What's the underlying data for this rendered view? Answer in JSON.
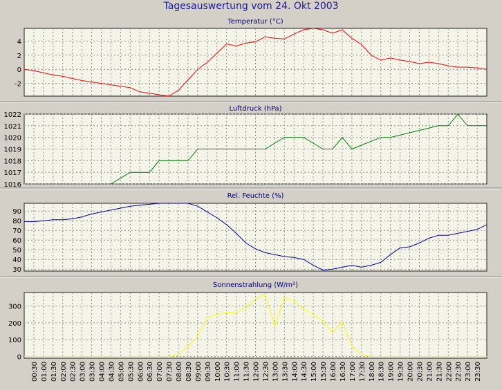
{
  "title": "Tagesauswertung vom 24. Okt 2003",
  "time_labels": [
    "00:30",
    "01:00",
    "01:30",
    "02:00",
    "02:30",
    "03:00",
    "03:30",
    "04:00",
    "04:30",
    "05:00",
    "05:30",
    "06:00",
    "06:30",
    "07:00",
    "07:30",
    "08:00",
    "08:30",
    "09:00",
    "09:30",
    "10:00",
    "10:30",
    "11:00",
    "11:30",
    "12:00",
    "12:30",
    "13:00",
    "13:30",
    "14:00",
    "14:30",
    "15:00",
    "15:30",
    "16:00",
    "16:30",
    "17:00",
    "17:30",
    "18:00",
    "18:30",
    "19:00",
    "19:30",
    "20:00",
    "20:30",
    "21:00",
    "21:30",
    "22:00",
    "22:30",
    "23:00",
    "23:30"
  ],
  "chart_data": [
    {
      "type": "line",
      "title": "Temperatur (°C)",
      "color": "#ff0000",
      "ylim": [
        -3.8,
        5.8
      ],
      "yticks": [
        -2,
        0,
        2,
        4
      ],
      "grid": true,
      "x": [
        "00:00",
        "00:30",
        "01:00",
        "01:30",
        "02:00",
        "02:30",
        "03:00",
        "03:30",
        "04:00",
        "04:30",
        "05:00",
        "05:30",
        "06:00",
        "06:30",
        "07:00",
        "07:30",
        "08:00",
        "08:30",
        "09:00",
        "09:30",
        "10:00",
        "10:30",
        "11:00",
        "11:30",
        "12:00",
        "12:30",
        "13:00",
        "13:30",
        "14:00",
        "14:30",
        "15:00",
        "15:30",
        "16:00",
        "16:30",
        "17:00",
        "17:30",
        "18:00",
        "18:30",
        "19:00",
        "19:30",
        "20:00",
        "20:30",
        "21:00",
        "21:30",
        "22:00",
        "22:30",
        "23:00",
        "23:30",
        "24:00"
      ],
      "values": [
        0.0,
        -0.2,
        -0.5,
        -0.8,
        -1.0,
        -1.3,
        -1.6,
        -1.8,
        -2.0,
        -2.2,
        -2.4,
        -2.6,
        -3.2,
        -3.4,
        -3.6,
        -3.8,
        -3.0,
        -1.5,
        0.0,
        1.0,
        2.3,
        3.6,
        3.3,
        3.7,
        3.9,
        4.6,
        4.4,
        4.3,
        5.0,
        5.6,
        5.8,
        5.6,
        5.1,
        5.6,
        4.4,
        3.5,
        2.0,
        1.3,
        1.6,
        1.3,
        1.1,
        0.8,
        1.0,
        0.8,
        0.5,
        0.3,
        0.3,
        0.2,
        0.0
      ]
    },
    {
      "type": "line",
      "title": "Luftdruck (hPa)",
      "color": "#008000",
      "ylim": [
        1016,
        1022
      ],
      "yticks": [
        1016,
        1017,
        1018,
        1019,
        1020,
        1021,
        1022
      ],
      "grid": true,
      "x": [
        "04:30",
        "05:30",
        "06:30",
        "07:00",
        "08:00",
        "08:30",
        "09:00",
        "10:00",
        "12:30",
        "13:30",
        "14:30",
        "15:30",
        "16:00",
        "16:30",
        "17:00",
        "18:30",
        "19:00",
        "21:30",
        "22:00",
        "22:30",
        "23:00",
        "24:00"
      ],
      "values": [
        1016,
        1017,
        1017,
        1018,
        1018,
        1018,
        1019,
        1019,
        1019,
        1020,
        1020,
        1019,
        1019,
        1020,
        1019,
        1020,
        1020,
        1021,
        1021,
        1022,
        1021,
        1021
      ]
    },
    {
      "type": "line",
      "title": "Rel. Feuchte (%)",
      "color": "#0000aa",
      "ylim": [
        28,
        98
      ],
      "yticks": [
        30,
        40,
        50,
        60,
        70,
        80,
        90
      ],
      "grid": true,
      "x": [
        "00:00",
        "00:30",
        "01:00",
        "01:30",
        "02:00",
        "02:30",
        "03:00",
        "03:30",
        "04:00",
        "04:30",
        "05:00",
        "05:30",
        "06:00",
        "06:30",
        "07:00",
        "07:30",
        "08:00",
        "08:30",
        "09:00",
        "09:30",
        "10:00",
        "10:30",
        "11:00",
        "11:30",
        "12:00",
        "12:30",
        "13:00",
        "13:30",
        "14:00",
        "14:30",
        "15:00",
        "15:30",
        "16:00",
        "16:30",
        "17:00",
        "17:30",
        "18:00",
        "18:30",
        "19:00",
        "19:30",
        "20:00",
        "20:30",
        "21:00",
        "21:30",
        "22:00",
        "22:30",
        "23:00",
        "23:30",
        "24:00"
      ],
      "values": [
        79,
        79,
        80,
        81,
        81,
        82,
        84,
        87,
        89,
        91,
        93,
        95,
        96,
        97,
        98,
        98,
        98,
        98,
        95,
        89,
        83,
        76,
        67,
        57,
        51,
        47,
        45,
        43,
        42,
        40,
        34,
        29,
        30,
        32,
        34,
        32,
        34,
        37,
        45,
        52,
        53,
        57,
        62,
        65,
        65,
        67,
        69,
        71,
        76
      ]
    },
    {
      "type": "line",
      "title": "Sonnenstrahlung (W/m²)",
      "color": "#ffff00",
      "ylim": [
        -10,
        380
      ],
      "yticks": [
        0,
        100,
        200,
        300
      ],
      "grid": true,
      "x": [
        "00:00",
        "07:30",
        "08:00",
        "08:30",
        "09:00",
        "09:30",
        "10:00",
        "10:30",
        "11:00",
        "11:30",
        "12:00",
        "12:30",
        "13:00",
        "13:30",
        "14:00",
        "14:30",
        "15:00",
        "15:30",
        "16:00",
        "16:30",
        "17:00",
        "17:30",
        "18:00",
        "23:30",
        "24:00"
      ],
      "values": [
        0,
        0,
        10,
        60,
        120,
        230,
        250,
        260,
        260,
        290,
        340,
        370,
        180,
        350,
        330,
        280,
        250,
        210,
        140,
        210,
        60,
        10,
        0,
        0,
        0
      ]
    }
  ]
}
